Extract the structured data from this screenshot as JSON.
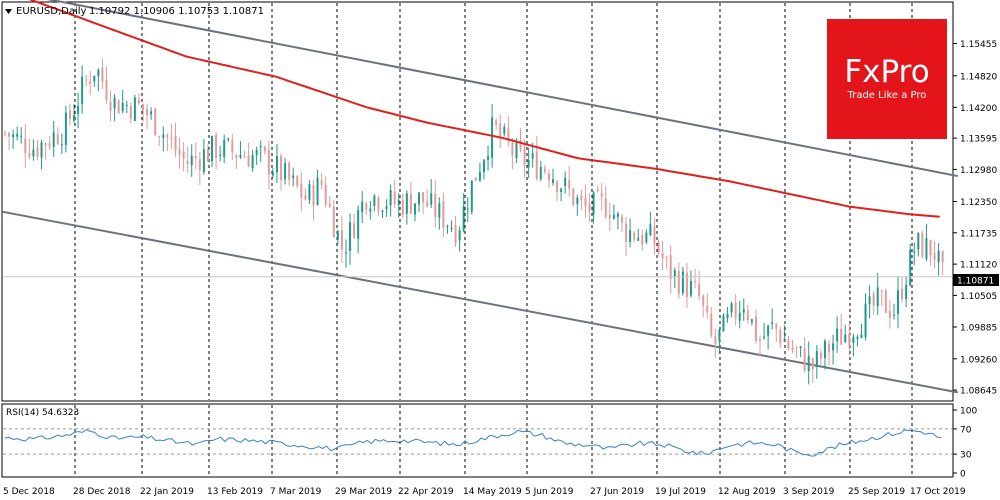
{
  "header": {
    "symbol_label": "EURUSD,Daily",
    "ohlc_text": "1.10792 1.10906 1.10753 1.10871"
  },
  "brand": {
    "logo_text": "FxPro",
    "tagline": "Trade Like a Pro",
    "color": "#e3151a"
  },
  "rsi": {
    "label": "RSI(14) 54.6323",
    "levels": [
      70,
      30
    ],
    "ticks": [
      "100",
      "70",
      "30",
      "0"
    ],
    "color": "#3a7fd5"
  },
  "colors": {
    "bull": "#1f9a8a",
    "bear": "#e39a9a",
    "ma": "#e0201c",
    "channel": "#6b7382",
    "grid": "#000000",
    "last_price_bg": "#000000"
  },
  "chart_data": {
    "type": "candlestick",
    "ylim": [
      1.0845,
      1.1625
    ],
    "y_ticks": [
      "1.15455",
      "1.14820",
      "1.14200",
      "1.13595",
      "1.12980",
      "1.12350",
      "1.11735",
      "1.11120",
      "1.10505",
      "1.09885",
      "1.09260",
      "1.08645"
    ],
    "last_price": "1.10871",
    "x_labels": [
      "5 Dec 2018",
      "28 Dec 2018",
      "22 Jan 2019",
      "13 Feb 2019",
      "7 Mar 2019",
      "29 Mar 2019",
      "22 Apr 2019",
      "14 May 2019",
      "5 Jun 2019",
      "27 Jun 2019",
      "19 Jul 2019",
      "12 Aug 2019",
      "3 Sep 2019",
      "25 Sep 2019",
      "17 Oct 2019"
    ],
    "candle_count": 232,
    "close_path": [
      [
        0,
        1.137
      ],
      [
        10,
        1.134
      ],
      [
        20,
        1.138
      ],
      [
        26,
        1.146
      ],
      [
        30,
        1.15
      ],
      [
        36,
        1.143
      ],
      [
        45,
        1.142
      ],
      [
        50,
        1.139
      ],
      [
        60,
        1.131
      ],
      [
        70,
        1.134
      ],
      [
        85,
        1.132
      ],
      [
        90,
        1.13
      ],
      [
        100,
        1.124
      ],
      [
        105,
        1.127
      ],
      [
        112,
        1.114
      ],
      [
        120,
        1.125
      ],
      [
        130,
        1.123
      ],
      [
        138,
        1.124
      ],
      [
        150,
        1.118
      ],
      [
        155,
        1.127
      ],
      [
        162,
        1.138
      ],
      [
        170,
        1.132
      ],
      [
        180,
        1.13
      ],
      [
        186,
        1.126
      ],
      [
        192,
        1.122
      ],
      [
        200,
        1.123
      ],
      [
        205,
        1.118
      ],
      [
        215,
        1.116
      ],
      [
        220,
        1.11
      ],
      [
        230,
        1.105
      ],
      [
        235,
        1.095
      ],
      [
        240,
        1.1
      ],
      [
        245,
        1.104
      ],
      [
        250,
        1.096
      ],
      [
        255,
        1.099
      ],
      [
        260,
        1.095
      ],
      [
        268,
        1.091
      ],
      [
        275,
        1.096
      ],
      [
        282,
        1.099
      ],
      [
        290,
        1.104
      ],
      [
        295,
        1.102
      ],
      [
        302,
        1.115
      ],
      [
        308,
        1.114
      ],
      [
        311,
        1.1087
      ]
    ],
    "moving_average": [
      [
        0,
        1.165
      ],
      [
        60,
        1.152
      ],
      [
        90,
        1.148
      ],
      [
        120,
        1.142
      ],
      [
        140,
        1.139
      ],
      [
        165,
        1.136
      ],
      [
        190,
        1.132
      ],
      [
        215,
        1.13
      ],
      [
        240,
        1.1275
      ],
      [
        260,
        1.125
      ],
      [
        280,
        1.1225
      ],
      [
        300,
        1.121
      ],
      [
        310,
        1.1205
      ]
    ],
    "channel_upper": [
      [
        0,
        1.165
      ],
      [
        316,
        1.1285
      ]
    ],
    "channel_lower": [
      [
        0,
        1.1215
      ],
      [
        316,
        1.086
      ]
    ],
    "rsi_series": [
      [
        0,
        56
      ],
      [
        10,
        54
      ],
      [
        20,
        60
      ],
      [
        28,
        67
      ],
      [
        36,
        55
      ],
      [
        46,
        57
      ],
      [
        56,
        50
      ],
      [
        64,
        45
      ],
      [
        70,
        54
      ],
      [
        80,
        52
      ],
      [
        90,
        48
      ],
      [
        100,
        43
      ],
      [
        110,
        38
      ],
      [
        120,
        50
      ],
      [
        130,
        52
      ],
      [
        140,
        49
      ],
      [
        150,
        45
      ],
      [
        160,
        56
      ],
      [
        170,
        66
      ],
      [
        178,
        60
      ],
      [
        186,
        47
      ],
      [
        194,
        44
      ],
      [
        200,
        38
      ],
      [
        210,
        47
      ],
      [
        218,
        45
      ],
      [
        226,
        35
      ],
      [
        232,
        30
      ],
      [
        240,
        44
      ],
      [
        248,
        48
      ],
      [
        256,
        45
      ],
      [
        262,
        33
      ],
      [
        268,
        30
      ],
      [
        276,
        43
      ],
      [
        284,
        52
      ],
      [
        292,
        60
      ],
      [
        300,
        68
      ],
      [
        305,
        65
      ],
      [
        311,
        55
      ]
    ]
  }
}
